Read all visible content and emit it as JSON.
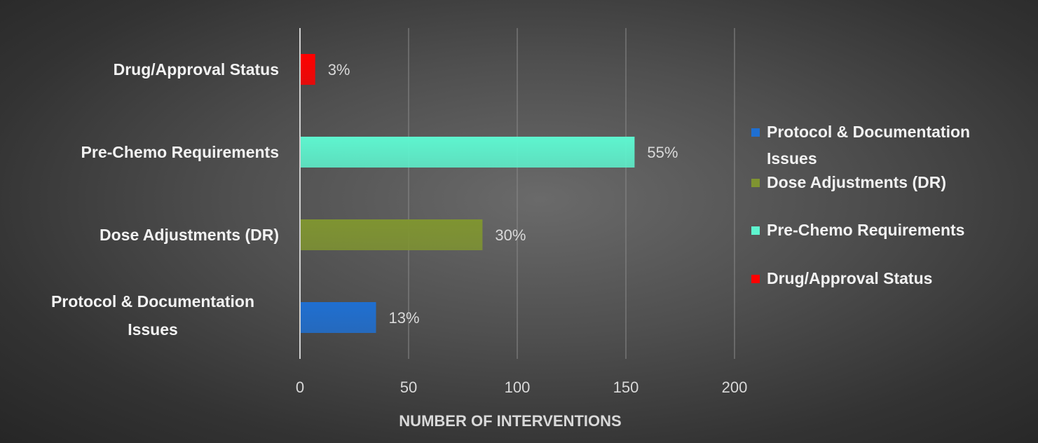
{
  "chart_data": {
    "type": "bar",
    "orientation": "horizontal",
    "xlabel": "NUMBER OF INTERVENTIONS",
    "xlim": [
      0,
      200
    ],
    "xticks": [
      0,
      50,
      100,
      150,
      200
    ],
    "grid": true,
    "legend_position": "right",
    "categories": [
      "Protocol & Documentation Issues",
      "Dose Adjustments (DR)",
      "Pre-Chemo Requirements",
      "Drug/Approval Status"
    ],
    "values": [
      35,
      84,
      154,
      7
    ],
    "data_labels": [
      "13%",
      "30%",
      "55%",
      "3%"
    ],
    "colors": [
      "#1f6fd1",
      "#7f9431",
      "#5ef5cf",
      "#ff0000"
    ],
    "legend": [
      "Protocol & Documentation Issues",
      "Dose Adjustments (DR)",
      "Pre-Chemo Requirements",
      "Drug/Approval Status"
    ]
  }
}
